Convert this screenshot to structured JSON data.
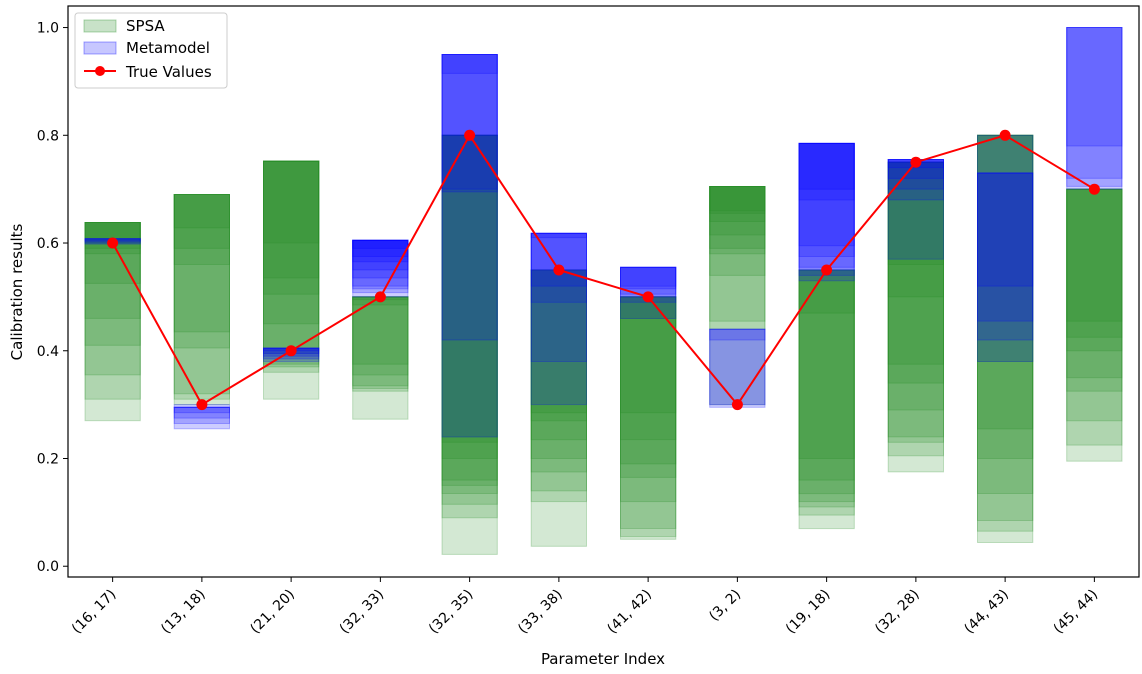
{
  "chart_data": {
    "type": "bar",
    "xlabel": "Parameter Index",
    "ylabel": "Calibration results",
    "ylim": [
      -0.02,
      1.04
    ],
    "yticks": [
      "0.0",
      "0.2",
      "0.4",
      "0.6",
      "0.8",
      "1.0"
    ],
    "grid": false,
    "legend_position": "top-left",
    "categories": [
      "(16, 17)",
      "(13, 18)",
      "(21, 20)",
      "(32, 33)",
      "(32, 35)",
      "(33, 38)",
      "(41, 42)",
      "(3, 2)",
      "(19, 18)",
      "(32, 28)",
      "(44, 43)",
      "(45, 44)"
    ],
    "series": [
      {
        "name": "SPSA",
        "kind": "range-bars",
        "color": "#228B22",
        "alpha": 0.2,
        "values": [
          [
            0.27,
            0.31,
            0.355,
            0.41,
            0.46,
            0.525,
            0.58,
            0.59,
            0.6,
            0.638
          ],
          [
            0.3,
            0.31,
            0.32,
            0.405,
            0.435,
            0.56,
            0.59,
            0.628,
            0.69
          ],
          [
            0.31,
            0.36,
            0.37,
            0.375,
            0.395,
            0.45,
            0.505,
            0.535,
            0.6,
            0.752
          ],
          [
            0.273,
            0.325,
            0.33,
            0.335,
            0.355,
            0.375,
            0.485,
            0.495,
            0.5
          ],
          [
            0.022,
            0.09,
            0.115,
            0.135,
            0.15,
            0.16,
            0.2,
            0.23,
            0.24,
            0.8
          ],
          [
            0.037,
            0.12,
            0.14,
            0.175,
            0.2,
            0.235,
            0.27,
            0.285,
            0.55
          ],
          [
            0.05,
            0.055,
            0.07,
            0.12,
            0.165,
            0.19,
            0.235,
            0.285,
            0.46,
            0.5
          ],
          [
            0.3,
            0.44,
            0.455,
            0.54,
            0.58,
            0.59,
            0.615,
            0.64,
            0.655,
            0.66,
            0.705
          ],
          [
            0.07,
            0.095,
            0.11,
            0.12,
            0.135,
            0.16,
            0.2,
            0.47,
            0.55
          ],
          [
            0.175,
            0.205,
            0.23,
            0.24,
            0.29,
            0.34,
            0.375,
            0.5,
            0.56,
            0.75
          ],
          [
            0.044,
            0.065,
            0.085,
            0.135,
            0.2,
            0.255,
            0.38,
            0.8
          ],
          [
            0.195,
            0.225,
            0.27,
            0.325,
            0.35,
            0.4,
            0.425,
            0.455,
            0.7
          ]
        ]
      },
      {
        "name": "Metamodel",
        "kind": "range-bars",
        "color": "#0000FF",
        "alpha": 0.2,
        "values": [
          [
            0.6,
            0.598,
            0.603,
            0.605,
            0.608
          ],
          [
            0.3,
            0.255,
            0.265,
            0.275,
            0.285,
            0.295
          ],
          [
            0.4,
            0.38,
            0.385,
            0.39,
            0.395,
            0.405
          ],
          [
            0.5,
            0.508,
            0.515,
            0.52,
            0.535,
            0.55,
            0.565,
            0.575,
            0.59,
            0.605
          ],
          [
            0.8,
            0.7,
            0.42,
            0.24,
            0.695,
            0.915,
            0.95
          ],
          [
            0.55,
            0.38,
            0.3,
            0.49,
            0.52,
            0.61,
            0.618
          ],
          [
            0.5,
            0.46,
            0.49,
            0.505,
            0.515,
            0.52,
            0.555
          ],
          [
            0.3,
            0.295,
            0.42,
            0.44
          ],
          [
            0.55,
            0.53,
            0.54,
            0.555,
            0.575,
            0.595,
            0.68,
            0.7,
            0.785
          ],
          [
            0.75,
            0.57,
            0.68,
            0.7,
            0.72,
            0.74,
            0.755
          ],
          [
            0.8,
            0.38,
            0.42,
            0.455,
            0.52,
            0.73
          ],
          [
            0.7,
            0.705,
            0.72,
            0.78,
            1.0
          ]
        ]
      },
      {
        "name": "True Values",
        "kind": "line",
        "color": "#FF0000",
        "values": [
          0.6,
          0.3,
          0.4,
          0.5,
          0.8,
          0.55,
          0.5,
          0.3,
          0.55,
          0.75,
          0.8,
          0.7
        ]
      }
    ]
  }
}
